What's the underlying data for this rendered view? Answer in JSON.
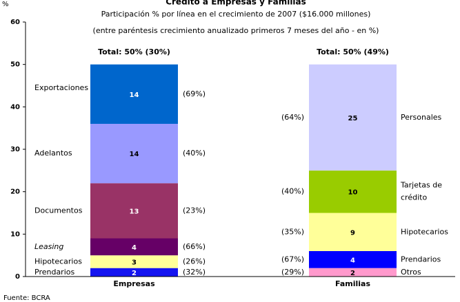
{
  "chart_data": {
    "type": "stacked-bar",
    "title": "Crédito a Empresas y Familias",
    "subtitle": [
      "Participación % por línea en el crecimiento de 2007 ($16.000 millones)",
      "(entre paréntesis crecimiento anualizado primeros 7 meses del año - en %)"
    ],
    "y_label": "%",
    "source": "Fuente: BCRA",
    "ylim": [
      0,
      60
    ],
    "yticks": [
      0,
      10,
      20,
      30,
      40,
      50,
      60
    ],
    "stacks": [
      {
        "category": "Empresas",
        "total_label": "Total: 50% (30%)",
        "segments": [
          {
            "name": "Prendarios",
            "value": 2,
            "note": "(32%)",
            "color": "#1414f0"
          },
          {
            "name": "Hipotecarios",
            "value": 3,
            "note": "(26%)",
            "color": "#ffff99"
          },
          {
            "name": "Leasing",
            "value": 4,
            "note": "(66%)",
            "color": "#660066",
            "italic": true
          },
          {
            "name": "Documentos",
            "value": 13,
            "note": "(23%)",
            "color": "#993366"
          },
          {
            "name": "Adelantos",
            "value": 14,
            "note": "(40%)",
            "color": "#9999ff"
          },
          {
            "name": "Exportaciones",
            "value": 14,
            "note": "(69%)",
            "color": "#0066cc"
          }
        ]
      },
      {
        "category": "Familias",
        "total_label": "Total: 50% (49%)",
        "segments": [
          {
            "name": "Otros",
            "value": 2,
            "note": "(29%)",
            "color": "#ff99cc"
          },
          {
            "name": "Prendarios",
            "value": 4,
            "note": "(67%)",
            "color": "#0000ff"
          },
          {
            "name": "Hipotecarios",
            "value": 9,
            "note": "(35%)",
            "color": "#ffff99"
          },
          {
            "name": "Tarjetas de crédito",
            "value": 10,
            "note": "(40%)",
            "color": "#99cc00"
          },
          {
            "name": "Personales",
            "value": 25,
            "note": "(64%)",
            "color": "#ccccff"
          }
        ]
      }
    ]
  }
}
